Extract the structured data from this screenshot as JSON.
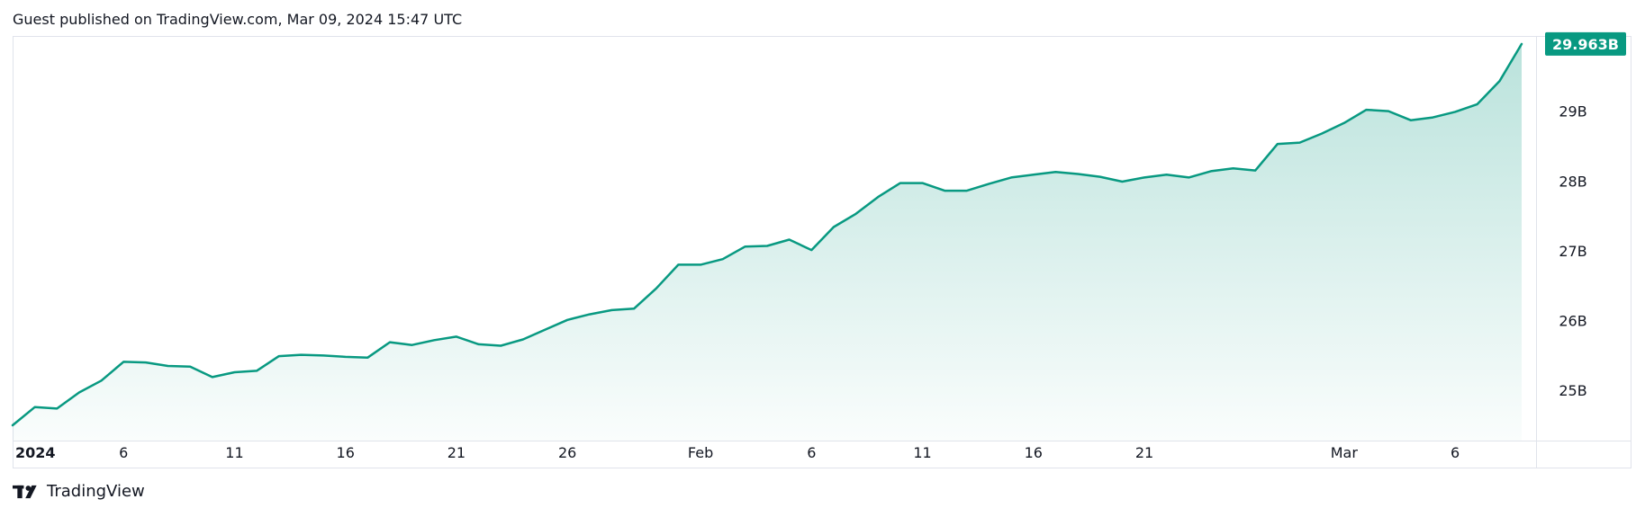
{
  "header": {
    "published_note": "Guest published on TradingView.com, Mar 09, 2024 15:47 UTC"
  },
  "brand": {
    "name": "TradingView",
    "logo_icon": "tradingview-logo-icon"
  },
  "colors": {
    "line": "#089981",
    "area_top": "#089981",
    "axis_border": "#e0e3eb",
    "text": "#131722",
    "badge": "#089981"
  },
  "chart_data": {
    "type": "area",
    "start_date": "2024-01-01",
    "x": [
      "2024-01-01",
      "2024-01-02",
      "2024-01-03",
      "2024-01-04",
      "2024-01-05",
      "2024-01-06",
      "2024-01-07",
      "2024-01-08",
      "2024-01-09",
      "2024-01-10",
      "2024-01-11",
      "2024-01-12",
      "2024-01-13",
      "2024-01-14",
      "2024-01-15",
      "2024-01-16",
      "2024-01-17",
      "2024-01-18",
      "2024-01-19",
      "2024-01-20",
      "2024-01-21",
      "2024-01-22",
      "2024-01-23",
      "2024-01-24",
      "2024-01-25",
      "2024-01-26",
      "2024-01-27",
      "2024-01-28",
      "2024-01-29",
      "2024-01-30",
      "2024-01-31",
      "2024-02-01",
      "2024-02-02",
      "2024-02-03",
      "2024-02-04",
      "2024-02-05",
      "2024-02-06",
      "2024-02-07",
      "2024-02-08",
      "2024-02-09",
      "2024-02-10",
      "2024-02-11",
      "2024-02-12",
      "2024-02-13",
      "2024-02-14",
      "2024-02-15",
      "2024-02-16",
      "2024-02-17",
      "2024-02-18",
      "2024-02-19",
      "2024-02-20",
      "2024-02-21",
      "2024-02-22",
      "2024-02-23",
      "2024-02-24",
      "2024-02-25",
      "2024-02-26",
      "2024-02-27",
      "2024-02-28",
      "2024-02-29",
      "2024-03-01",
      "2024-03-02",
      "2024-03-03",
      "2024-03-04",
      "2024-03-05",
      "2024-03-06",
      "2024-03-07",
      "2024-03-08",
      "2024-03-09"
    ],
    "series": [
      {
        "values": [
          24.5,
          24.76,
          24.74,
          24.97,
          25.14,
          25.41,
          25.4,
          25.35,
          25.34,
          25.19,
          25.26,
          25.28,
          25.49,
          25.51,
          25.5,
          25.48,
          25.47,
          25.69,
          25.65,
          25.72,
          25.77,
          25.66,
          25.64,
          25.73,
          25.87,
          26.01,
          26.09,
          26.15,
          26.17,
          26.46,
          26.8,
          26.8,
          26.88,
          27.06,
          27.07,
          27.16,
          27.01,
          27.34,
          27.53,
          27.77,
          27.97,
          27.97,
          27.86,
          27.86,
          27.96,
          28.05,
          28.09,
          28.13,
          28.1,
          28.06,
          27.99,
          28.05,
          28.09,
          28.05,
          28.14,
          28.18,
          28.15,
          28.53,
          28.55,
          28.68,
          28.83,
          29.02,
          29.0,
          28.87,
          28.91,
          28.99,
          29.1,
          29.43,
          29.963
        ]
      }
    ],
    "x_tick_labels": [
      {
        "date": "2024-01-01",
        "label": "2024"
      },
      {
        "date": "2024-01-06",
        "label": "6"
      },
      {
        "date": "2024-01-11",
        "label": "11"
      },
      {
        "date": "2024-01-16",
        "label": "16"
      },
      {
        "date": "2024-01-21",
        "label": "21"
      },
      {
        "date": "2024-01-26",
        "label": "26"
      },
      {
        "date": "2024-02-01",
        "label": "Feb"
      },
      {
        "date": "2024-02-06",
        "label": "6"
      },
      {
        "date": "2024-02-11",
        "label": "11"
      },
      {
        "date": "2024-02-16",
        "label": "16"
      },
      {
        "date": "2024-02-21",
        "label": "21"
      },
      {
        "date": "2024-03-01",
        "label": "Mar"
      },
      {
        "date": "2024-03-06",
        "label": "6"
      }
    ],
    "y_ticks": [
      {
        "value": 25,
        "label": "25B"
      },
      {
        "value": 26,
        "label": "26B"
      },
      {
        "value": 27,
        "label": "27B"
      },
      {
        "value": 28,
        "label": "28B"
      },
      {
        "value": 29,
        "label": "29B"
      }
    ],
    "ylim": [
      24.5,
      30.0
    ],
    "last_value_label": "29.963B",
    "grid": false,
    "title": "",
    "xlabel": "",
    "ylabel": ""
  }
}
